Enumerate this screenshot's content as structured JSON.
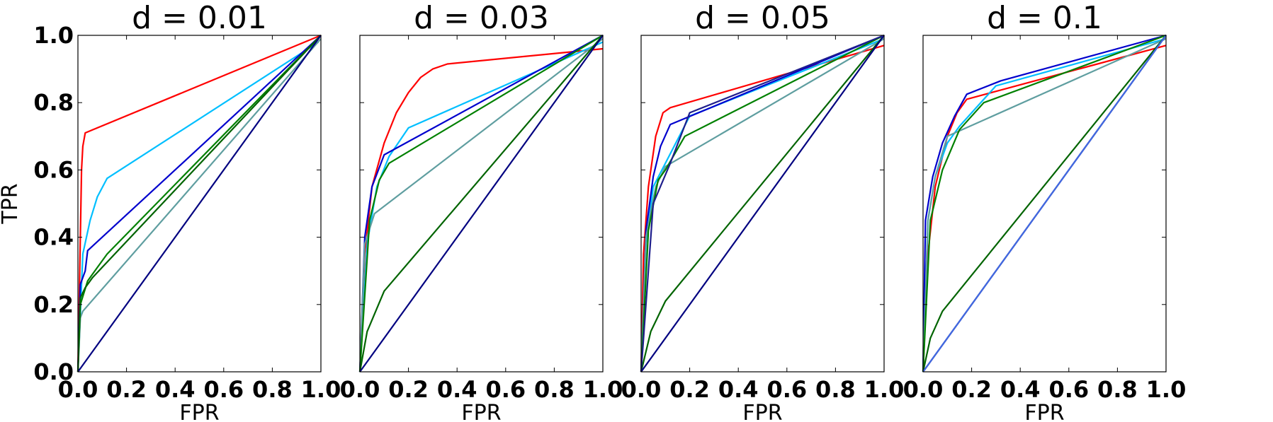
{
  "chart_data": [
    {
      "type": "line",
      "title": "d = 0.01",
      "xlabel": "FPR",
      "ylabel": "TPR",
      "xlim": [
        0,
        1
      ],
      "ylim": [
        0,
        1
      ],
      "xticks": [
        "0.0",
        "0.2",
        "0.4",
        "0.6",
        "0.8",
        "1.0"
      ],
      "yticks": [
        "0.0",
        "0.2",
        "0.4",
        "0.6",
        "0.8",
        "1.0"
      ],
      "grid": false,
      "series": [
        {
          "color": "#ff0000",
          "x": [
            0,
            0.01,
            0.015,
            0.02,
            0.03,
            1
          ],
          "y": [
            0,
            0.4,
            0.6,
            0.67,
            0.71,
            1
          ]
        },
        {
          "color": "#00bfff",
          "x": [
            0,
            0.02,
            0.05,
            0.08,
            0.12,
            0.99
          ],
          "y": [
            0,
            0.35,
            0.45,
            0.52,
            0.575,
            0.98
          ]
        },
        {
          "color": "#0000cd",
          "x": [
            0,
            0.01,
            0.03,
            0.04,
            1
          ],
          "y": [
            0,
            0.26,
            0.3,
            0.36,
            1
          ]
        },
        {
          "color": "#5f9ea0",
          "x": [
            0,
            0.01,
            0.02,
            1
          ],
          "y": [
            0,
            0.16,
            0.18,
            0.99
          ]
        },
        {
          "color": "#008000",
          "x": [
            0,
            0.01,
            0.04,
            0.08,
            0.12,
            1
          ],
          "y": [
            0,
            0.2,
            0.27,
            0.31,
            0.35,
            1
          ]
        },
        {
          "color": "#006400",
          "x": [
            0,
            0.01,
            0.03,
            0.06,
            1
          ],
          "y": [
            0,
            0.22,
            0.25,
            0.28,
            1
          ]
        },
        {
          "color": "#000080",
          "x": [
            0,
            1
          ],
          "y": [
            0,
            1
          ]
        }
      ]
    },
    {
      "type": "line",
      "title": "d = 0.03",
      "xlabel": "FPR",
      "xlim": [
        0,
        1
      ],
      "ylim": [
        0,
        1
      ],
      "xticks": [
        "0.0",
        "0.2",
        "0.4",
        "0.6",
        "0.8",
        "1.0"
      ],
      "grid": false,
      "series": [
        {
          "color": "#ff0000",
          "x": [
            0,
            0.02,
            0.05,
            0.1,
            0.15,
            0.2,
            0.25,
            0.3,
            0.36,
            1
          ],
          "y": [
            0,
            0.35,
            0.55,
            0.68,
            0.77,
            0.83,
            0.875,
            0.9,
            0.915,
            0.96
          ]
        },
        {
          "color": "#00bfff",
          "x": [
            0,
            0.03,
            0.07,
            0.12,
            0.2,
            1
          ],
          "y": [
            0,
            0.38,
            0.55,
            0.64,
            0.725,
            0.98
          ]
        },
        {
          "color": "#0000cd",
          "x": [
            0,
            0.02,
            0.05,
            0.1,
            1
          ],
          "y": [
            0,
            0.4,
            0.55,
            0.645,
            1
          ]
        },
        {
          "color": "#5f9ea0",
          "x": [
            0,
            0.02,
            0.06,
            1
          ],
          "y": [
            0,
            0.38,
            0.47,
            0.99
          ]
        },
        {
          "color": "#008000",
          "x": [
            0,
            0.04,
            0.08,
            0.12,
            1
          ],
          "y": [
            0,
            0.45,
            0.57,
            0.62,
            1
          ]
        },
        {
          "color": "#006400",
          "x": [
            0,
            0.03,
            0.1,
            1
          ],
          "y": [
            0,
            0.12,
            0.24,
            1
          ]
        },
        {
          "color": "#000080",
          "x": [
            0,
            1
          ],
          "y": [
            0,
            1
          ]
        }
      ]
    },
    {
      "type": "line",
      "title": "d = 0.05",
      "xlabel": "FPR",
      "xlim": [
        0,
        1
      ],
      "ylim": [
        0,
        1
      ],
      "xticks": [
        "0.0",
        "0.2",
        "0.4",
        "0.6",
        "0.8",
        "1.0"
      ],
      "grid": false,
      "series": [
        {
          "color": "#ff0000",
          "x": [
            0,
            0.01,
            0.03,
            0.06,
            0.09,
            0.12,
            1
          ],
          "y": [
            0,
            0.35,
            0.55,
            0.7,
            0.77,
            0.785,
            0.97
          ]
        },
        {
          "color": "#00bfff",
          "x": [
            0,
            0.02,
            0.05,
            0.1,
            0.2,
            1
          ],
          "y": [
            0,
            0.38,
            0.55,
            0.62,
            0.76,
            0.99
          ]
        },
        {
          "color": "#0000cd",
          "x": [
            0,
            0.02,
            0.05,
            0.08,
            0.12,
            1
          ],
          "y": [
            0,
            0.42,
            0.58,
            0.67,
            0.735,
            1
          ]
        },
        {
          "color": "#5f9ea0",
          "x": [
            0,
            0.02,
            0.06,
            0.1,
            1
          ],
          "y": [
            0,
            0.4,
            0.55,
            0.61,
            0.99
          ]
        },
        {
          "color": "#008000",
          "x": [
            0,
            0.03,
            0.07,
            0.1,
            0.18,
            1
          ],
          "y": [
            0,
            0.42,
            0.57,
            0.6,
            0.7,
            1
          ]
        },
        {
          "color": "#006400",
          "x": [
            0,
            0.04,
            0.1,
            1
          ],
          "y": [
            0,
            0.12,
            0.21,
            1
          ]
        },
        {
          "color": "#000080",
          "x": [
            0,
            1
          ],
          "y": [
            0,
            1
          ]
        },
        {
          "color": "#1e1e8c",
          "x": [
            0,
            0.05,
            0.12,
            0.2,
            1
          ],
          "y": [
            0,
            0.5,
            0.62,
            0.77,
            1
          ]
        }
      ]
    },
    {
      "type": "line",
      "title": "d = 0.1",
      "xlabel": "FPR",
      "xlim": [
        0,
        1
      ],
      "ylim": [
        0,
        1
      ],
      "xticks": [
        "0.0",
        "0.2",
        "0.4",
        "0.6",
        "0.8",
        "1.0"
      ],
      "grid": false,
      "series": [
        {
          "color": "#ff0000",
          "x": [
            0,
            0.02,
            0.05,
            0.1,
            0.14,
            0.18,
            1
          ],
          "y": [
            0,
            0.35,
            0.55,
            0.7,
            0.77,
            0.81,
            0.97
          ]
        },
        {
          "color": "#00bfff",
          "x": [
            0,
            0.02,
            0.05,
            0.1,
            0.15,
            0.3,
            1
          ],
          "y": [
            0,
            0.45,
            0.58,
            0.68,
            0.73,
            0.85,
            0.99
          ]
        },
        {
          "color": "#0000cd",
          "x": [
            0,
            0.01,
            0.04,
            0.08,
            0.13,
            0.18,
            0.32,
            1
          ],
          "y": [
            0,
            0.45,
            0.58,
            0.68,
            0.76,
            0.825,
            0.865,
            1
          ]
        },
        {
          "color": "#5f9ea0",
          "x": [
            0,
            0.02,
            0.05,
            0.1,
            1
          ],
          "y": [
            0,
            0.45,
            0.58,
            0.7,
            0.99
          ]
        },
        {
          "color": "#008000",
          "x": [
            0,
            0.03,
            0.08,
            0.15,
            0.25,
            1
          ],
          "y": [
            0,
            0.45,
            0.6,
            0.72,
            0.8,
            1
          ]
        },
        {
          "color": "#006400",
          "x": [
            0,
            0.03,
            0.08,
            1
          ],
          "y": [
            0,
            0.1,
            0.18,
            1
          ]
        },
        {
          "color": "#000080",
          "x": [
            0,
            1
          ],
          "y": [
            0,
            1
          ]
        },
        {
          "color": "#4169e1",
          "x": [
            0,
            0.01,
            1
          ],
          "y": [
            0,
            0.01,
            1
          ]
        }
      ]
    }
  ]
}
